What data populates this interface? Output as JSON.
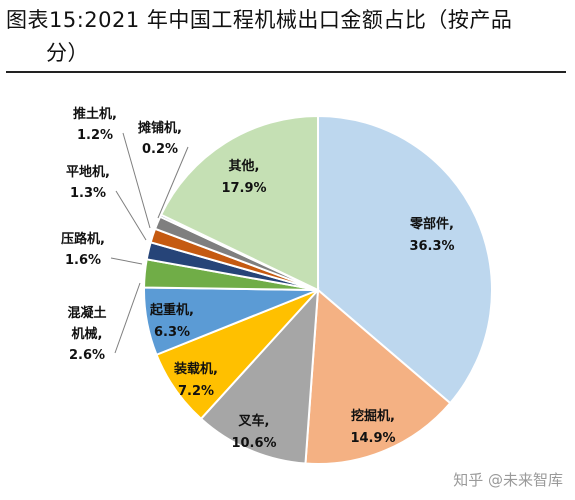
{
  "title": {
    "line1": "图表15:2021 年中国工程机械出口金额占比（按产品",
    "line2": "分）"
  },
  "watermark": "知乎 @未来智库",
  "chart_data": {
    "type": "pie",
    "title": "图表15:2021 年中国工程机械出口金额占比（按产品分）",
    "unit": "%",
    "start": "12 o'clock",
    "direction": "clockwise",
    "slices": [
      {
        "name": "零部件",
        "value": 36.3,
        "label": "36.3%",
        "color": "#BDD7EE"
      },
      {
        "name": "挖掘机",
        "value": 14.9,
        "label": "14.9%",
        "color": "#F4B183"
      },
      {
        "name": "叉车",
        "value": 10.6,
        "label": "10.6%",
        "color": "#A6A6A6"
      },
      {
        "name": "装载机",
        "value": 7.2,
        "label": "7.2%",
        "color": "#FFC000"
      },
      {
        "name": "起重机",
        "value": 6.3,
        "label": "6.3%",
        "color": "#5B9BD5"
      },
      {
        "name": "混凝土机械",
        "value": 2.6,
        "label": "2.6%",
        "color": "#70AD47"
      },
      {
        "name": "压路机",
        "value": 1.6,
        "label": "1.6%",
        "color": "#264478"
      },
      {
        "name": "平地机",
        "value": 1.3,
        "label": "1.3%",
        "color": "#C55A11"
      },
      {
        "name": "推土机",
        "value": 1.2,
        "label": "1.2%",
        "color": "#7F7F7F"
      },
      {
        "name": "摊铺机",
        "value": 0.2,
        "label": "0.2%",
        "color": "#1F3864"
      },
      {
        "name": "其他",
        "value": 17.9,
        "label": "17.9%",
        "color": "#C5E0B4"
      }
    ]
  }
}
